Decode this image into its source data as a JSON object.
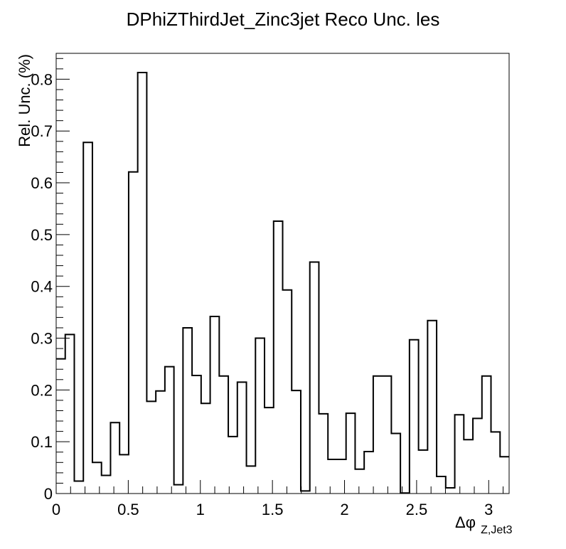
{
  "chart_data": {
    "type": "histogram-step",
    "title": "DPhiZThirdJet_Zinc3jet Reco Unc. les",
    "xlabel": "Δφ",
    "xlabel_sub": "Z,Jet3",
    "ylabel": "Rel. Unc. (%)",
    "xlim": [
      0,
      3.1416
    ],
    "ylim": [
      0,
      0.85
    ],
    "grid": false,
    "x_ticks": [
      {
        "value": 0,
        "label": "0"
      },
      {
        "value": 0.5,
        "label": "0.5"
      },
      {
        "value": 1,
        "label": "1"
      },
      {
        "value": 1.5,
        "label": "1.5"
      },
      {
        "value": 2,
        "label": "2"
      },
      {
        "value": 2.5,
        "label": "2.5"
      },
      {
        "value": 3,
        "label": "3"
      }
    ],
    "y_ticks": [
      {
        "value": 0,
        "label": "0"
      },
      {
        "value": 0.1,
        "label": "0.1"
      },
      {
        "value": 0.2,
        "label": "0.2"
      },
      {
        "value": 0.3,
        "label": "0.3"
      },
      {
        "value": 0.4,
        "label": "0.4"
      },
      {
        "value": 0.5,
        "label": "0.5"
      },
      {
        "value": 0.6,
        "label": "0.6"
      },
      {
        "value": 0.7,
        "label": "0.7"
      },
      {
        "value": 0.8,
        "label": "0.8"
      }
    ],
    "bin_edges": [
      0,
      0.0628,
      0.1257,
      0.1885,
      0.2513,
      0.3142,
      0.377,
      0.4398,
      0.5027,
      0.5655,
      0.6283,
      0.6912,
      0.754,
      0.8168,
      0.8796,
      0.9425,
      1.0053,
      1.0681,
      1.131,
      1.1938,
      1.2566,
      1.3195,
      1.3823,
      1.4451,
      1.508,
      1.5708,
      1.6336,
      1.6965,
      1.7593,
      1.8221,
      1.885,
      1.9478,
      2.0106,
      2.0735,
      2.1363,
      2.1991,
      2.2619,
      2.3248,
      2.3876,
      2.4504,
      2.5133,
      2.5761,
      2.6389,
      2.7018,
      2.7646,
      2.8274,
      2.8903,
      2.9531,
      3.0159,
      3.0788,
      3.1416
    ],
    "values": [
      0.26,
      0.307,
      0.024,
      0.678,
      0.06,
      0.035,
      0.137,
      0.075,
      0.621,
      0.813,
      0.178,
      0.198,
      0.245,
      0.017,
      0.32,
      0.228,
      0.174,
      0.342,
      0.227,
      0.11,
      0.215,
      0.053,
      0.3,
      0.166,
      0.526,
      0.393,
      0.199,
      0.005,
      0.447,
      0.154,
      0.066,
      0.066,
      0.155,
      0.047,
      0.081,
      0.227,
      0.227,
      0.116,
      0.001,
      0.297,
      0.084,
      0.334,
      0.033,
      0.011,
      0.152,
      0.104,
      0.145,
      0.227,
      0.119,
      0.071
    ]
  }
}
